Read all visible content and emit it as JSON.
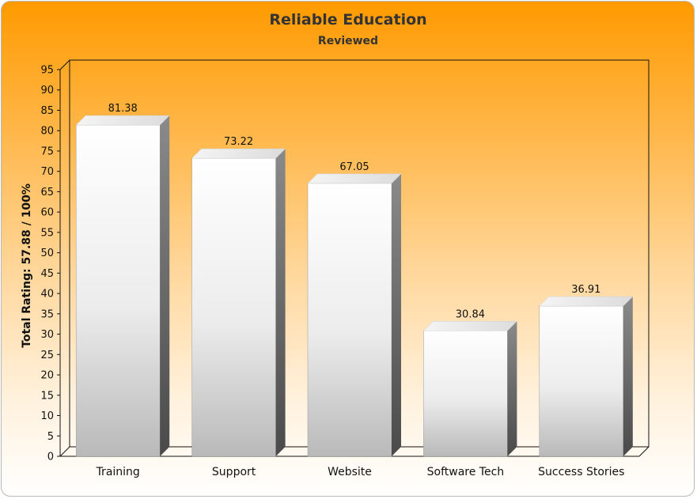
{
  "chart_data": {
    "type": "bar",
    "title": "Reliable Education",
    "subtitle": "Reviewed",
    "xlabel": "",
    "ylabel": "Total Rating: 57.88 / 100%",
    "categories": [
      "Training",
      "Support",
      "Website",
      "Software Tech",
      "Success Stories"
    ],
    "values": [
      81.38,
      73.22,
      67.05,
      30.84,
      36.91
    ],
    "value_labels": [
      "81.38",
      "73.22",
      "67.05",
      "30.84",
      "36.91"
    ],
    "ylim": [
      0,
      95
    ],
    "yticks": [
      "0",
      "5",
      "10",
      "15",
      "20",
      "25",
      "30",
      "35",
      "40",
      "45",
      "50",
      "55",
      "60",
      "65",
      "70",
      "75",
      "80",
      "85",
      "90",
      "95"
    ],
    "grid": false,
    "legend": "none",
    "bar_color": "#ffffff"
  }
}
